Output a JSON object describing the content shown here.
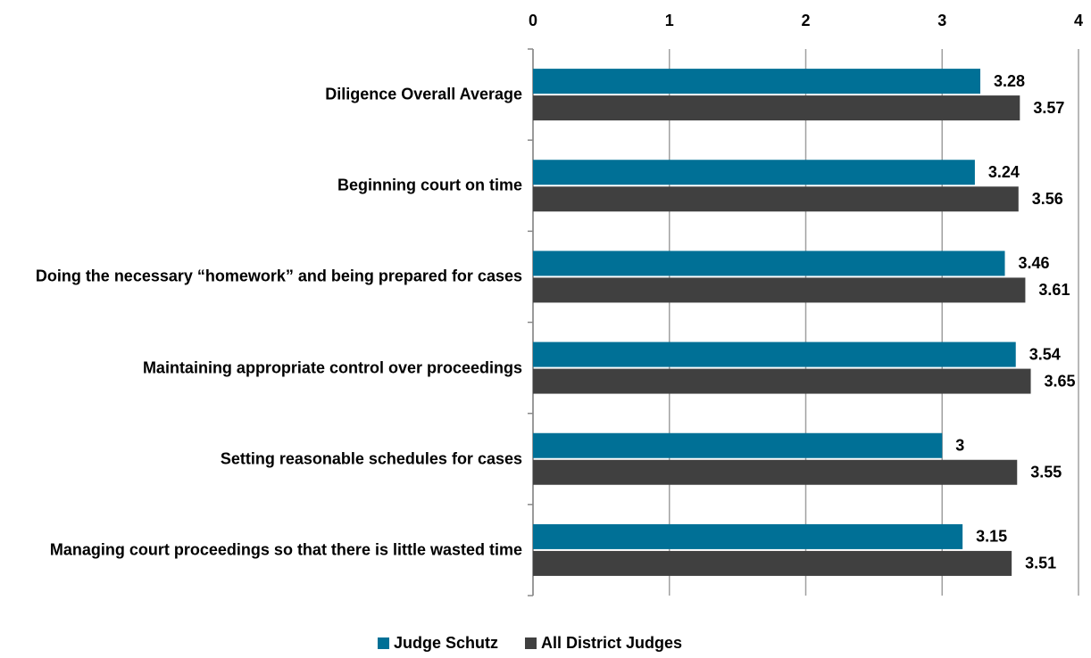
{
  "chart_data": {
    "type": "bar",
    "orientation": "horizontal",
    "categories": [
      "Diligence Overall Average",
      "Beginning court on time",
      "Doing the necessary “homework” and being prepared for cases",
      "Maintaining appropriate control over proceedings",
      "Setting reasonable schedules for cases",
      "Managing court proceedings so that there is little wasted time"
    ],
    "series": [
      {
        "name": "Judge Schutz",
        "color": "#007096",
        "values": [
          3.28,
          3.24,
          3.46,
          3.54,
          3,
          3.15
        ]
      },
      {
        "name": "All District Judges",
        "color": "#404040",
        "values": [
          3.57,
          3.56,
          3.61,
          3.65,
          3.55,
          3.51
        ]
      }
    ],
    "xlim": [
      0,
      4
    ],
    "xticks": [
      0,
      1,
      2,
      3,
      4
    ],
    "grid": true,
    "legend": "bottom"
  }
}
